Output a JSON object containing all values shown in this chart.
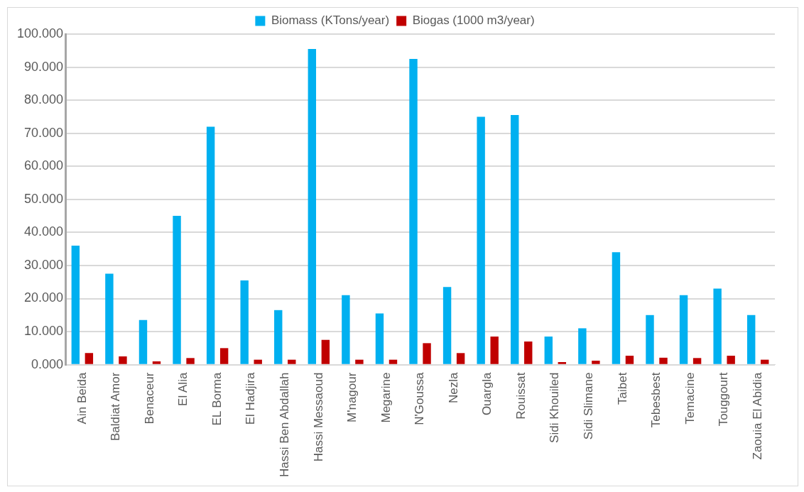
{
  "chart_data": {
    "type": "bar",
    "categories": [
      "Ain Beida",
      "Baldiat Amor",
      "Benaceur",
      "El Alia",
      "EL Borma",
      "El Hadjira",
      "Hassi Ben Abdallah",
      "Hassi Messaoud",
      "M'nagour",
      "Megarine",
      "N'Goussa",
      "Nezla",
      "Ouargla",
      "Rouissat",
      "Sidi Khouiled",
      "Sidi Slimane",
      "Taibet",
      "Tebesbest",
      "Temacine",
      "Touggourt",
      "Zaouia El Abidia"
    ],
    "series": [
      {
        "name": "Biomass (KTons/year)",
        "color": "#00b0f0",
        "values": [
          36,
          27.5,
          13.5,
          45,
          72,
          25.5,
          16.5,
          95.5,
          21,
          15.5,
          92.5,
          23.5,
          75,
          75.5,
          8.5,
          11,
          34,
          15,
          21,
          23,
          15
        ]
      },
      {
        "name": "Biogas (1000 m3/year)",
        "color": "#c00000",
        "values": [
          3.5,
          2.5,
          1,
          2,
          5,
          1.5,
          1.5,
          7.5,
          1.5,
          1.5,
          6.5,
          3.5,
          8.5,
          7,
          0.8,
          1.2,
          2.7,
          2.1,
          2,
          2.7,
          1.5
        ]
      }
    ],
    "ylim": [
      0,
      100
    ],
    "yticks": [
      {
        "value": 0,
        "label": "0.000"
      },
      {
        "value": 10,
        "label": "10.000"
      },
      {
        "value": 20,
        "label": "20.000"
      },
      {
        "value": 30,
        "label": "30.000"
      },
      {
        "value": 40,
        "label": "40.000"
      },
      {
        "value": 50,
        "label": "50.000"
      },
      {
        "value": 60,
        "label": "60.000"
      },
      {
        "value": 70,
        "label": "70.000"
      },
      {
        "value": 80,
        "label": "80.000"
      },
      {
        "value": 90,
        "label": "90.000"
      },
      {
        "value": 100,
        "label": "100.000"
      }
    ],
    "grid": "y",
    "legend": "top"
  }
}
